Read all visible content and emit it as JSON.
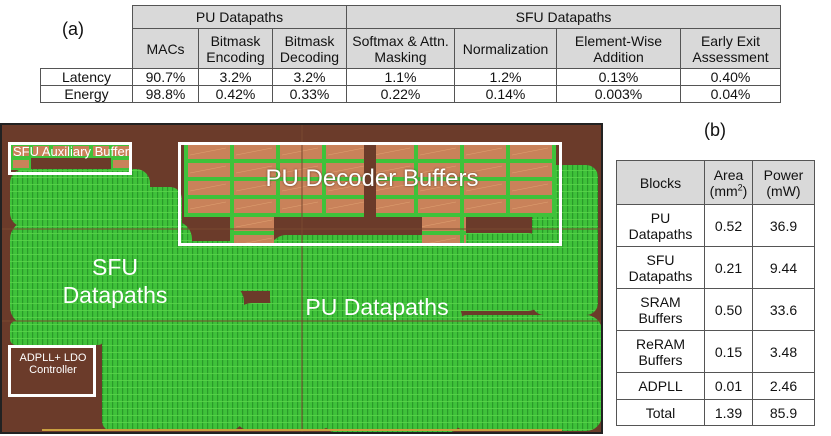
{
  "panel_a_label": "(a)",
  "panel_b_label": "(b)",
  "table_a": {
    "group_headers": [
      "PU Datapaths",
      "SFU Datapaths"
    ],
    "columns": [
      "MACs",
      "Bitmask Encoding",
      "Bitmask Decoding",
      "Softmax & Attn. Masking",
      "Normalization",
      "Element-Wise Addition",
      "Early Exit Assessment"
    ],
    "rows": [
      {
        "label": "Latency",
        "values": [
          "90.7%",
          "3.2%",
          "3.2%",
          "1.1%",
          "1.2%",
          "0.13%",
          "0.40%"
        ]
      },
      {
        "label": "Energy",
        "values": [
          "98.8%",
          "0.42%",
          "0.33%",
          "0.22%",
          "0.14%",
          "0.003%",
          "0.04%"
        ]
      }
    ]
  },
  "table_b": {
    "headers": {
      "blocks": "Blocks",
      "area": "Area",
      "area_unit_pre": "(mm",
      "area_unit_sup": "2",
      "area_unit_post": ")",
      "power": "Power",
      "power_unit": "(mW)"
    },
    "rows": [
      {
        "block": "PU Datapaths",
        "area": "0.52",
        "power": "36.9"
      },
      {
        "block": "SFU Datapaths",
        "area": "0.21",
        "power": "9.44"
      },
      {
        "block": "SRAM Buffers",
        "area": "0.50",
        "power": "33.6"
      },
      {
        "block": "ReRAM Buffers",
        "area": "0.15",
        "power": "3.48"
      },
      {
        "block": "ADPLL",
        "area": "0.01",
        "power": "2.46"
      },
      {
        "block": "Total",
        "area": "1.39",
        "power": "85.9"
      }
    ]
  },
  "chip": {
    "pu_decoder_buffers": "PU Decoder Buffers",
    "sfu_auxiliary_buffer": "SFU Auxiliary Buffer",
    "sfu_datapaths": "SFU Datapaths",
    "pu_datapaths": "PU Datapaths",
    "adpll_ldo_controller": "ADPLL+ LDO Controller",
    "colors": {
      "die": "#6b3b2a",
      "logic": "#3fc23a",
      "sram": "#c9825a",
      "outline": "#ffffff"
    }
  }
}
